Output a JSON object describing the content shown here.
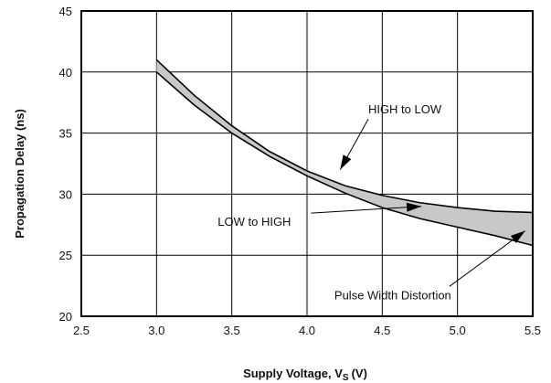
{
  "chart_data": {
    "type": "line",
    "title": "",
    "xlabel": "Supply Voltage, V",
    "xlabel_sub": "S",
    "xlabel_unit": "(V)",
    "ylabel": "Propagation Delay (ns)",
    "xlim": [
      2.5,
      5.5
    ],
    "ylim": [
      20,
      45
    ],
    "xticks": [
      2.5,
      3.0,
      3.5,
      4.0,
      4.5,
      5.0,
      5.5
    ],
    "yticks": [
      20,
      25,
      30,
      35,
      40,
      45
    ],
    "xtick_labels": [
      "2.5",
      "3.0",
      "3.5",
      "4.0",
      "4.5",
      "5.0",
      "5.5"
    ],
    "ytick_labels": [
      "20",
      "25",
      "30",
      "35",
      "40",
      "45"
    ],
    "grid": true,
    "fill_between": true,
    "fill_color": "#c8c8c8",
    "series": [
      {
        "name": "HIGH to LOW",
        "x": [
          3.0,
          3.25,
          3.5,
          3.75,
          4.0,
          4.25,
          4.5,
          4.75,
          5.0,
          5.25,
          5.5
        ],
        "y": [
          41.0,
          38.1,
          35.6,
          33.5,
          31.9,
          30.7,
          29.9,
          29.3,
          28.9,
          28.6,
          28.5
        ]
      },
      {
        "name": "LOW to HIGH",
        "x": [
          3.0,
          3.25,
          3.5,
          3.75,
          4.0,
          4.25,
          4.5,
          4.75,
          5.0,
          5.25,
          5.5
        ],
        "y": [
          40.0,
          37.3,
          35.0,
          33.1,
          31.5,
          30.1,
          28.9,
          28.0,
          27.3,
          26.6,
          25.8
        ]
      }
    ],
    "annotations": [
      {
        "text": "HIGH to LOW",
        "x": 4.65,
        "y": 36.6,
        "arrow_to": [
          4.22,
          32.0
        ]
      },
      {
        "text": "LOW to HIGH",
        "x": 3.65,
        "y": 27.4,
        "arrow_to": [
          4.76,
          29.0
        ]
      },
      {
        "text": "Pulse Width Distortion",
        "x": 4.57,
        "y": 21.4,
        "arrow_to": [
          5.45,
          27.0
        ]
      }
    ]
  }
}
